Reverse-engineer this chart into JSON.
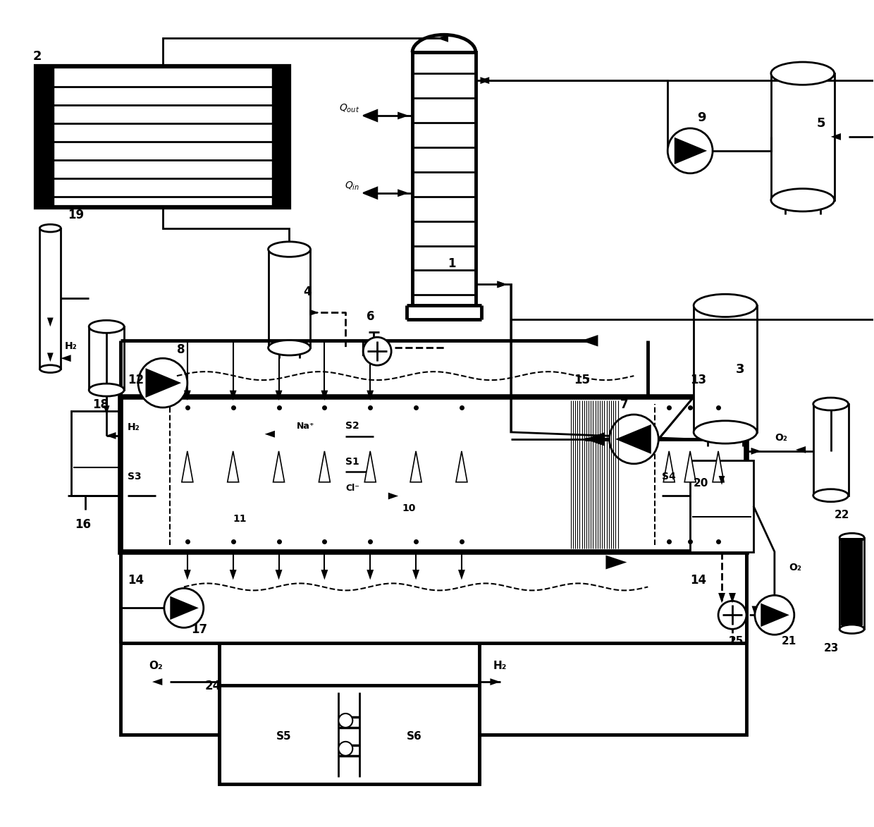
{
  "bg": "#ffffff",
  "lc": "#000000",
  "lw": 2.0,
  "lw_thick": 3.5,
  "figsize": [
    12.4,
    11.73
  ],
  "dpi": 100,
  "xlim": [
    0,
    124
  ],
  "ylim": [
    0,
    117.3
  ]
}
